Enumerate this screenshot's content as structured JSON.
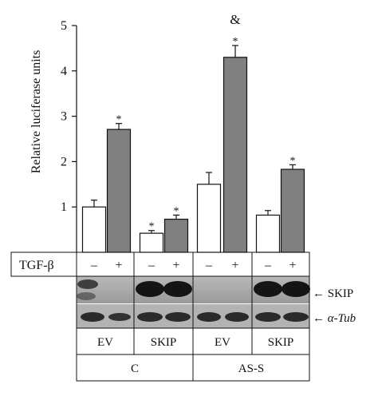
{
  "chart_data": {
    "type": "bar",
    "ylabel": "Relative luciferase units",
    "ylim": [
      0,
      5
    ],
    "yticks": [
      "1",
      "2",
      "3",
      "4",
      "5"
    ],
    "groups": [
      {
        "treatment_label": "TGF-β",
        "minus_label": "–",
        "plus_label": "+"
      }
    ],
    "bars": [
      {
        "cell": "C",
        "construct": "EV",
        "tgf": "–",
        "value": 1.0,
        "error": 0.15,
        "fill": "#ffffff",
        "marks": []
      },
      {
        "cell": "C",
        "construct": "EV",
        "tgf": "+",
        "value": 2.71,
        "error": 0.13,
        "fill": "#808080",
        "marks": [
          "*"
        ]
      },
      {
        "cell": "C",
        "construct": "SKIP",
        "tgf": "–",
        "value": 0.42,
        "error": 0.06,
        "fill": "#ffffff",
        "marks": [
          "*"
        ]
      },
      {
        "cell": "C",
        "construct": "SKIP",
        "tgf": "+",
        "value": 0.73,
        "error": 0.09,
        "fill": "#808080",
        "marks": [
          "*"
        ]
      },
      {
        "cell": "AS-S",
        "construct": "EV",
        "tgf": "–",
        "value": 1.5,
        "error": 0.26,
        "fill": "#ffffff",
        "marks": []
      },
      {
        "cell": "AS-S",
        "construct": "EV",
        "tgf": "+",
        "value": 4.3,
        "error": 0.26,
        "fill": "#808080",
        "marks": [
          "*",
          "&"
        ]
      },
      {
        "cell": "AS-S",
        "construct": "SKIP",
        "tgf": "–",
        "value": 0.82,
        "error": 0.1,
        "fill": "#ffffff",
        "marks": []
      },
      {
        "cell": "AS-S",
        "construct": "SKIP",
        "tgf": "+",
        "value": 1.83,
        "error": 0.1,
        "fill": "#808080",
        "marks": [
          "*"
        ]
      }
    ],
    "treatment_row": {
      "label": "TGF-β",
      "signs": [
        "–",
        "+",
        "–",
        "+",
        "–",
        "+",
        "–",
        "+"
      ]
    },
    "blot_labels": [
      "← SKIP",
      "← α-Tub"
    ],
    "construct_row": [
      "EV",
      "SKIP",
      "EV",
      "SKIP"
    ],
    "cell_row": [
      "C",
      "AS-S"
    ]
  }
}
